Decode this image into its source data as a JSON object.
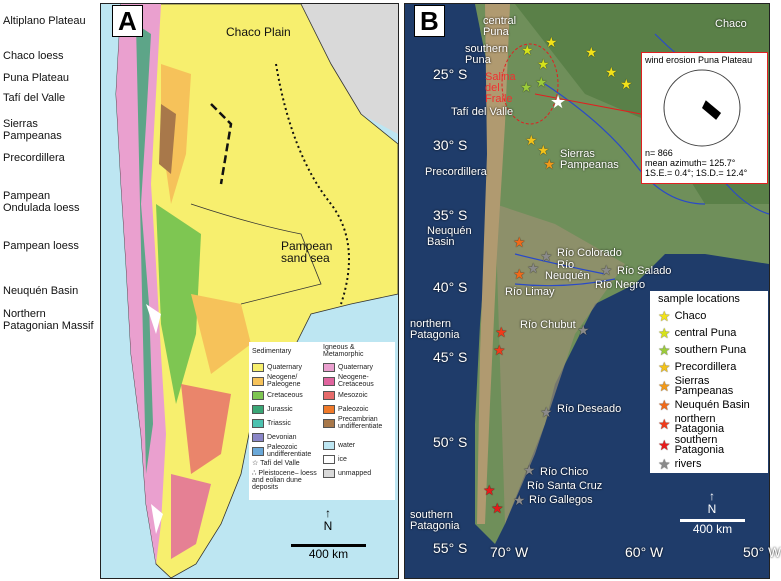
{
  "panelA": {
    "letter": "A",
    "left_labels": [
      "Altiplano Plateau",
      "Chaco loess",
      "Puna Plateau",
      "Tafí del Valle",
      "Sierras Pampeanas",
      "Precordillera",
      "Pampean Ondulada loess",
      "Pampean loess",
      "Neuquén Basin",
      "Northern Patagonian Massif"
    ],
    "map_labels": {
      "chaco": "Chaco Plain",
      "sand": "Pampean sand sea"
    },
    "scale": "400 km",
    "north": "N",
    "legend": {
      "sed_title": "Sedimentary",
      "ign_title": "Igneous & Metamorphic",
      "sed": [
        {
          "label": "Quaternary",
          "color": "#f7ef6e"
        },
        {
          "label": "Neogene/ Paleogene",
          "color": "#f6c25a"
        },
        {
          "label": "Cretaceous",
          "color": "#7ec652"
        },
        {
          "label": "Jurassic",
          "color": "#3aa676"
        },
        {
          "label": "Triassic",
          "color": "#4cc2b0"
        },
        {
          "label": "Devonian",
          "color": "#8a86c8"
        },
        {
          "label": "Paleozoic undifferentiate",
          "color": "#6aa8d8"
        }
      ],
      "ign": [
        {
          "label": "Quaternary",
          "color": "#eaa0cf"
        },
        {
          "label": "Neogene-Cretaceous",
          "color": "#e0649e"
        },
        {
          "label": "Mesozoic",
          "color": "#e66a6a"
        },
        {
          "label": "Paleozoic",
          "color": "#f07a2a"
        },
        {
          "label": "Precambrian undifferentiate",
          "color": "#a8784a"
        }
      ],
      "other": [
        {
          "label": "water",
          "color": "#bde6f2"
        },
        {
          "label": "ice",
          "color": "#ffffff"
        },
        {
          "label": "unmapped",
          "color": "#d9d9d9"
        }
      ],
      "tafi": "Tafí del Valle",
      "pleist": "Pleistocene– loess and eolian dune deposits"
    }
  },
  "panelB": {
    "letter": "B",
    "lats": [
      "25° S",
      "30° S",
      "35° S",
      "40° S",
      "45° S",
      "50° S",
      "55° S"
    ],
    "lons": [
      "70° W",
      "60° W",
      "50° W"
    ],
    "places": [
      "central Puna",
      "southern Puna",
      "Chaco",
      "Tafí del Valle",
      "Precordillera",
      "Sierras Pampeanas",
      "Neuquén Basin",
      "Río Colorado",
      "Río",
      "Neuquén",
      "Río Salado",
      "Río Limay",
      "Río Negro",
      "northern Patagonia",
      "Río Chubut",
      "Río Deseado",
      "Río Chico",
      "Río Santa Cruz",
      "Río Gallegos",
      "southern Patagonia"
    ],
    "salina": "Salina del Fraile",
    "rose": {
      "title": "wind erosion Puna Plateau",
      "n": "n= 866",
      "mean": "mean azimuth= 125.7°",
      "se": "1S.E.= 0.4°; 1S.D.= 12.4°",
      "mean_azimuth_deg": 125.7
    },
    "legend": {
      "title": "sample locations",
      "items": [
        {
          "label": "Chaco",
          "color": "#f2e21a"
        },
        {
          "label": "central Puna",
          "color": "#d6e21a"
        },
        {
          "label": "southern Puna",
          "color": "#9ccc3a"
        },
        {
          "label": "Precordillera",
          "color": "#f2c21a"
        },
        {
          "label": "Sierras Pampeanas",
          "color": "#f29a1a"
        },
        {
          "label": "Neuquén Basin",
          "color": "#f06a1a"
        },
        {
          "label": "northern Patagonia",
          "color": "#f03a1a"
        },
        {
          "label": "southern Patagonia",
          "color": "#e81a1a"
        },
        {
          "label": "rivers",
          "color": "#8a8a8a"
        }
      ]
    },
    "scale": "400 km",
    "north": "N"
  }
}
